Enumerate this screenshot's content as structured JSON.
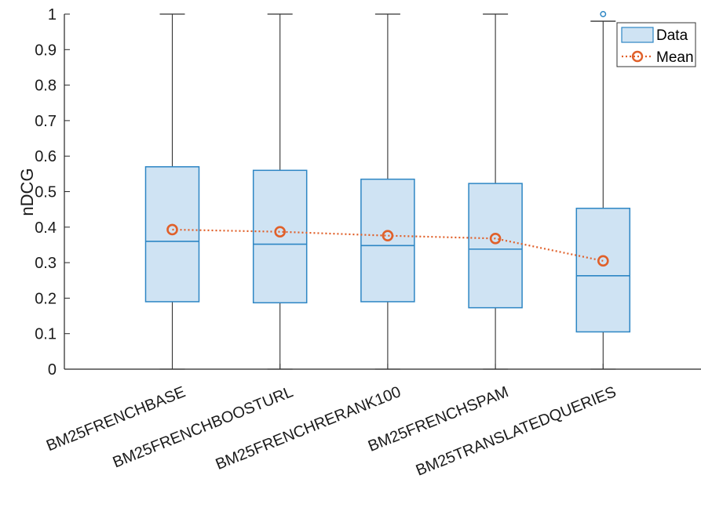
{
  "chart_data": {
    "type": "box",
    "ylabel": "nDCG",
    "xlabel": "",
    "ylim": [
      0,
      1
    ],
    "yticks": [
      0,
      0.1,
      0.2,
      0.3,
      0.4,
      0.5,
      0.6,
      0.7,
      0.8,
      0.9,
      1
    ],
    "ytick_labels": [
      "0",
      "0.1",
      "0.2",
      "0.3",
      "0.4",
      "0.5",
      "0.6",
      "0.7",
      "0.8",
      "0.9",
      "1"
    ],
    "categories": [
      "BM25FRENCHBASE",
      "BM25FRENCHBOOSTURL",
      "BM25FRENCHRERANK100",
      "BM25FRENCHSPAM",
      "BM25TRANSLATEDQUERIES"
    ],
    "boxes": [
      {
        "min": 0,
        "q1": 0.19,
        "median": 0.36,
        "q3": 0.57,
        "max": 1,
        "outliers": []
      },
      {
        "min": 0,
        "q1": 0.187,
        "median": 0.352,
        "q3": 0.56,
        "max": 1,
        "outliers": []
      },
      {
        "min": 0,
        "q1": 0.19,
        "median": 0.348,
        "q3": 0.535,
        "max": 1,
        "outliers": []
      },
      {
        "min": 0,
        "q1": 0.173,
        "median": 0.338,
        "q3": 0.523,
        "max": 1,
        "outliers": []
      },
      {
        "min": 0,
        "q1": 0.105,
        "median": 0.263,
        "q3": 0.453,
        "max": 0.98,
        "outliers": [
          1
        ]
      }
    ],
    "series": [
      {
        "name": "Data",
        "kind": "box"
      },
      {
        "name": "Mean",
        "kind": "line",
        "values": [
          0.393,
          0.387,
          0.376,
          0.368,
          0.305
        ]
      }
    ],
    "legend": {
      "position": "top-right",
      "entries": [
        "Data",
        "Mean"
      ]
    },
    "grid": false,
    "colors": {
      "box_fill": "#cfe3f3",
      "box_edge": "#2d86c4",
      "whisker": "#333333",
      "mean": "#e0602a",
      "axis": "#262626"
    }
  }
}
